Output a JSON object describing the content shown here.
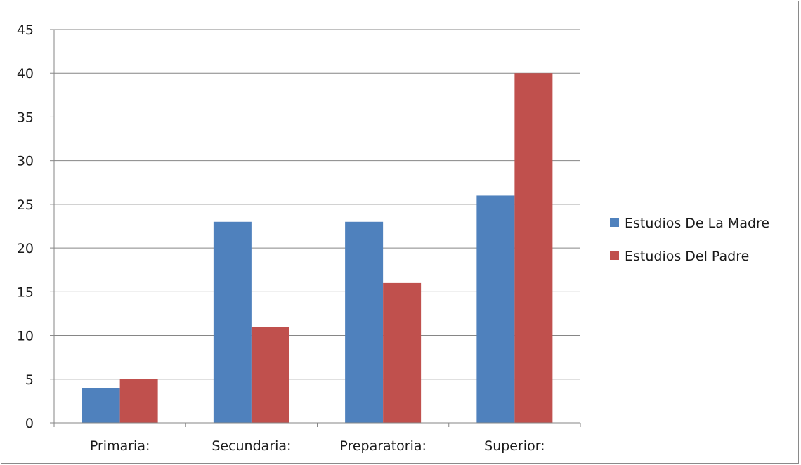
{
  "chart_data": {
    "type": "bar",
    "categories": [
      "Primaria:",
      "Secundaria:",
      "Preparatoria:",
      "Superior:"
    ],
    "series": [
      {
        "name": "Estudios De La Madre",
        "values": [
          4,
          23,
          23,
          26
        ],
        "color": "#4f81bd"
      },
      {
        "name": "Estudios Del Padre",
        "values": [
          5,
          11,
          16,
          40
        ],
        "color": "#c0504d"
      }
    ],
    "ylim": [
      0,
      45
    ],
    "yticks": [
      0,
      5,
      10,
      15,
      20,
      25,
      30,
      35,
      40,
      45
    ],
    "grid": true,
    "legend_position": "right",
    "title": "",
    "xlabel": "",
    "ylabel": ""
  }
}
